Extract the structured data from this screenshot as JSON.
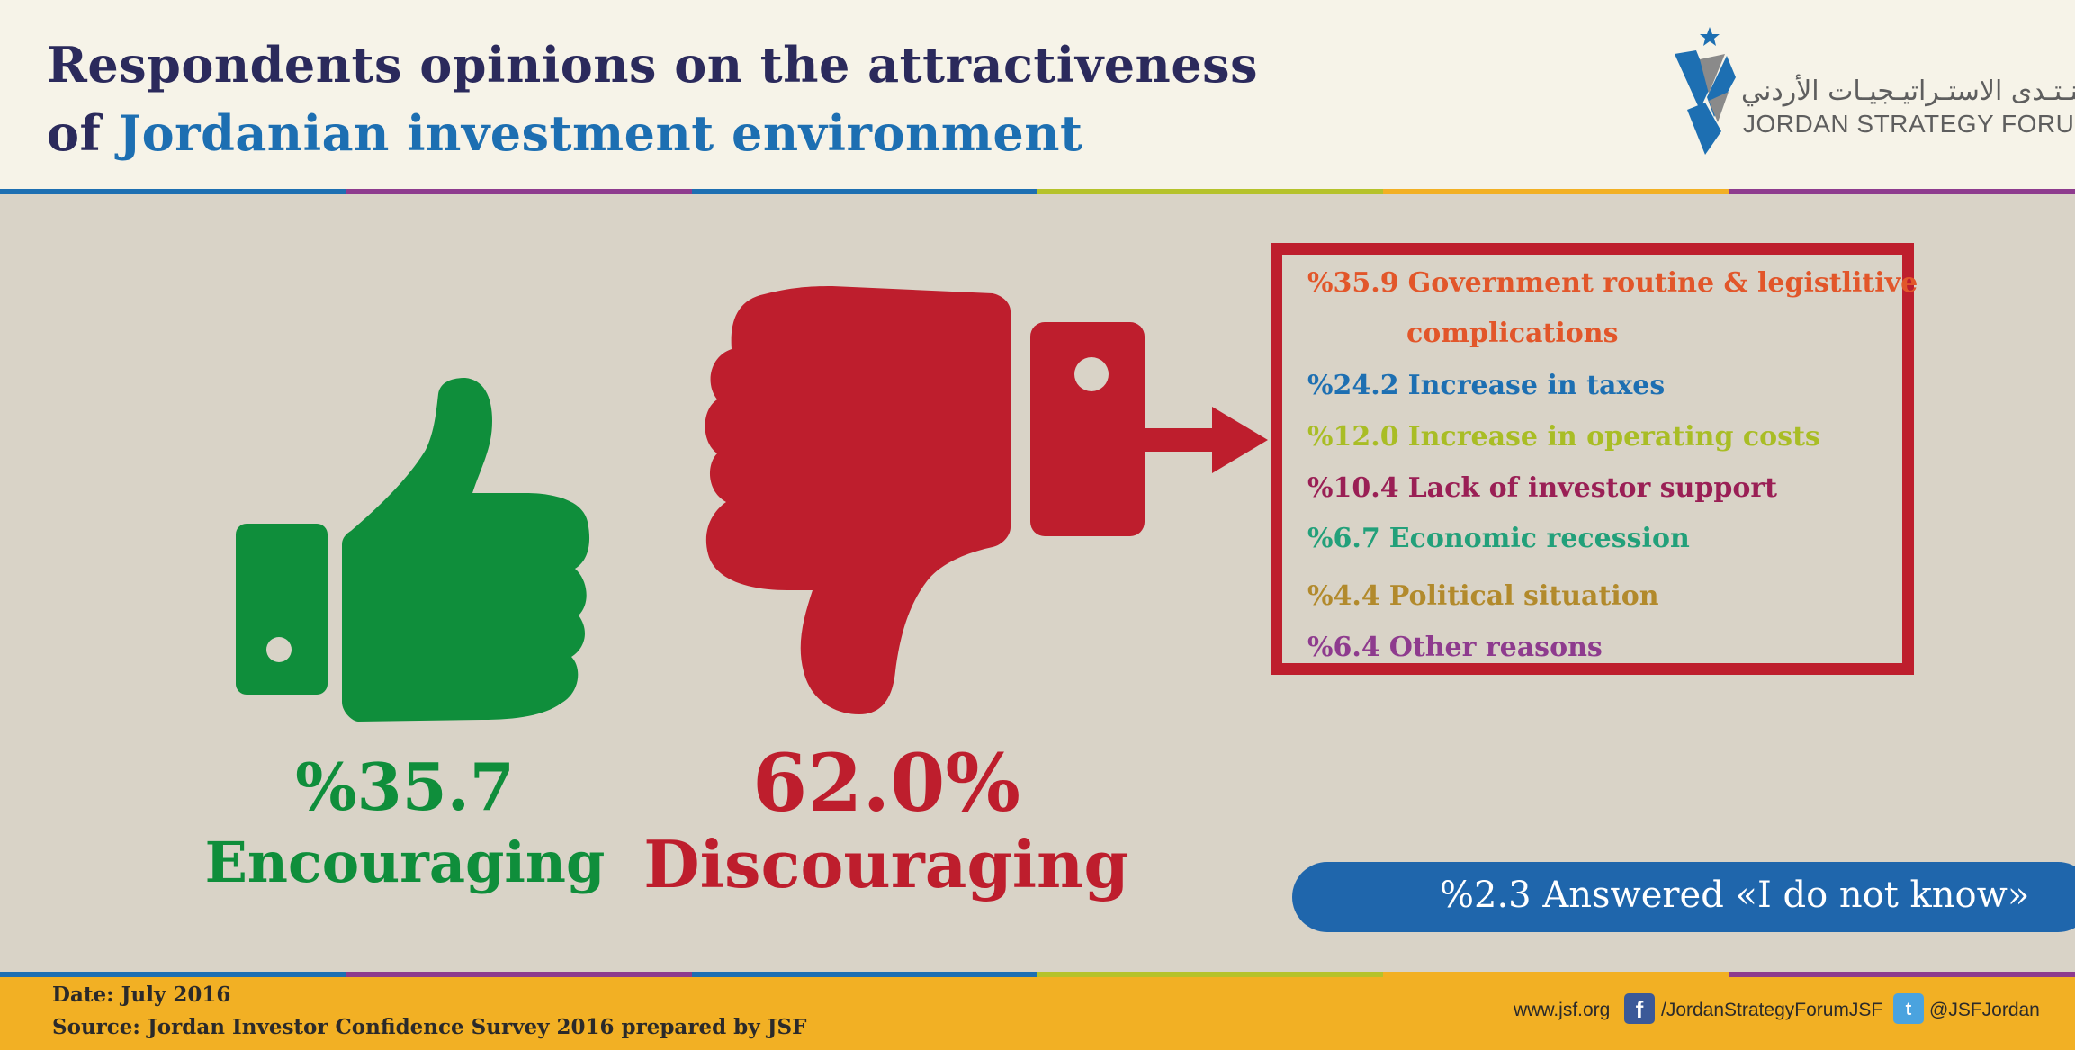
{
  "header": {
    "title_line1": "Respondents opinions on the attractiveness",
    "title_line2_prefix": "of ",
    "title_line2_highlight": "Jordanian investment environment"
  },
  "logo": {
    "arabic_name": "منـتـدى الاستـراتيـجيـات الأردني",
    "english_name": "JORDAN STRATEGY FORUM"
  },
  "colors": {
    "encouraging": "#0f8e3b",
    "discouraging": "#be1e2d",
    "title_dark": "#2b2a5c",
    "title_blue": "#1d6fb2",
    "stripe": [
      "#1d6fb2",
      "#8e3b8e",
      "#1d6fb2",
      "#b5c22b",
      "#f2b024",
      "#8e3b8e"
    ]
  },
  "icons": {
    "thumbs_up": "thumbs-up-icon",
    "thumbs_down": "thumbs-down-icon",
    "arrow": "arrow-right-icon",
    "facebook": "facebook-icon",
    "twitter": "twitter-icon"
  },
  "chart_data": {
    "type": "table",
    "main": [
      {
        "pct_label": "%35.7",
        "label": "Encouraging",
        "value": 35.7,
        "color": "#0f8e3b"
      },
      {
        "pct_label": "62.0%",
        "label": "Discouraging",
        "value": 62.0,
        "color": "#be1e2d"
      },
      {
        "pct_label": "%2.3",
        "label": "Answered «I do not know»",
        "value": 2.3,
        "color": "#1f66ac"
      }
    ],
    "discouraging_reasons": [
      {
        "pct_label": "%35.9",
        "value": 35.9,
        "label": "Government routine & legistlitive",
        "label_cont": "complications",
        "color": "#e2562a"
      },
      {
        "pct_label": "%24.2",
        "value": 24.2,
        "label": "Increase in taxes",
        "color": "#1d6fb2"
      },
      {
        "pct_label": "%12.0",
        "value": 12.0,
        "label": "Increase in operating costs",
        "color": "#a9bd25"
      },
      {
        "pct_label": "%10.4",
        "value": 10.4,
        "label": "Lack of investor support",
        "color": "#9a1f55"
      },
      {
        "pct_label": "%6.7",
        "value": 6.7,
        "label": "Economic recession",
        "color": "#22a07a"
      },
      {
        "pct_label": "%4.4",
        "value": 4.4,
        "label": "Political situation",
        "color": "#b28a2c"
      },
      {
        "pct_label": "%6.4",
        "value": 6.4,
        "label": "Other reasons",
        "color": "#8e3b8e"
      }
    ],
    "dont_know_text": "%2.3 Answered «I do not know»"
  },
  "footer": {
    "date": "Date: July 2016",
    "source": "Source: Jordan Investor Confidence Survey 2016 prepared by JSF",
    "website": "www.jsf.org",
    "facebook": "/JordanStrategyForumJSF",
    "twitter": "@JSFJordan"
  }
}
